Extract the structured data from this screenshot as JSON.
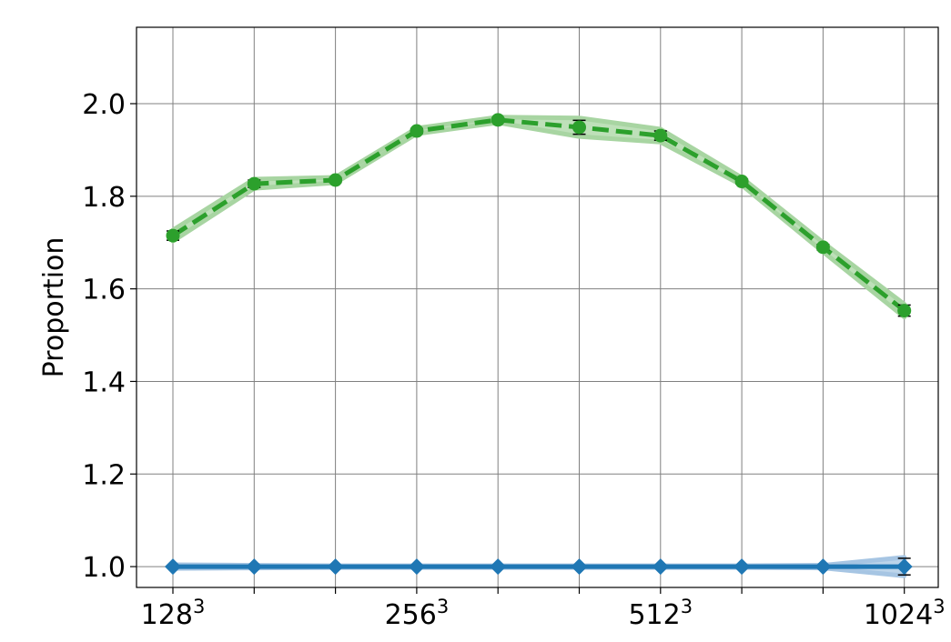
{
  "chart_data": {
    "type": "line",
    "title": "",
    "xlabel": "",
    "ylabel": "Proportion",
    "x": [
      0,
      1,
      2,
      3,
      4,
      5,
      6,
      7,
      8,
      9
    ],
    "x_tick_labels": [
      {
        "index": 0,
        "base": "128",
        "exp": "3"
      },
      {
        "index": 3,
        "base": "256",
        "exp": "3"
      },
      {
        "index": 6,
        "base": "512",
        "exp": "3"
      },
      {
        "index": 9,
        "base": "1024",
        "exp": "3"
      }
    ],
    "y_ticks": [
      "1.0",
      "1.2",
      "1.4",
      "1.6",
      "1.8",
      "2.0"
    ],
    "ylim": [
      0.955,
      2.165
    ],
    "grid": true,
    "legend": null,
    "series": [
      {
        "color": "#2ca02c",
        "band_color": "#a8d5a2",
        "line_style": "dashed",
        "marker": "circle",
        "values": [
          1.715,
          1.827,
          1.835,
          1.941,
          1.965,
          1.949,
          1.931,
          1.832,
          1.69,
          1.553
        ],
        "errors": [
          0.01,
          0.008,
          0.005,
          0.005,
          0.004,
          0.015,
          0.01,
          0.005,
          0.006,
          0.012
        ],
        "band": [
          0.012,
          0.01,
          0.006,
          0.006,
          0.006,
          0.02,
          0.014,
          0.008,
          0.01,
          0.014
        ]
      },
      {
        "color": "#1f77b4",
        "band_color": "#a6c5e3",
        "line_style": "solid",
        "marker": "diamond",
        "values": [
          1.0,
          1.0,
          1.0,
          1.0,
          1.0,
          1.0,
          1.0,
          1.0,
          1.0,
          1.0
        ],
        "errors": [
          0.002,
          0.002,
          0.002,
          0.002,
          0.002,
          0.002,
          0.002,
          0.002,
          0.002,
          0.018
        ],
        "band": [
          0.004,
          0.003,
          0.002,
          0.002,
          0.002,
          0.002,
          0.002,
          0.002,
          0.003,
          0.02
        ]
      }
    ]
  }
}
